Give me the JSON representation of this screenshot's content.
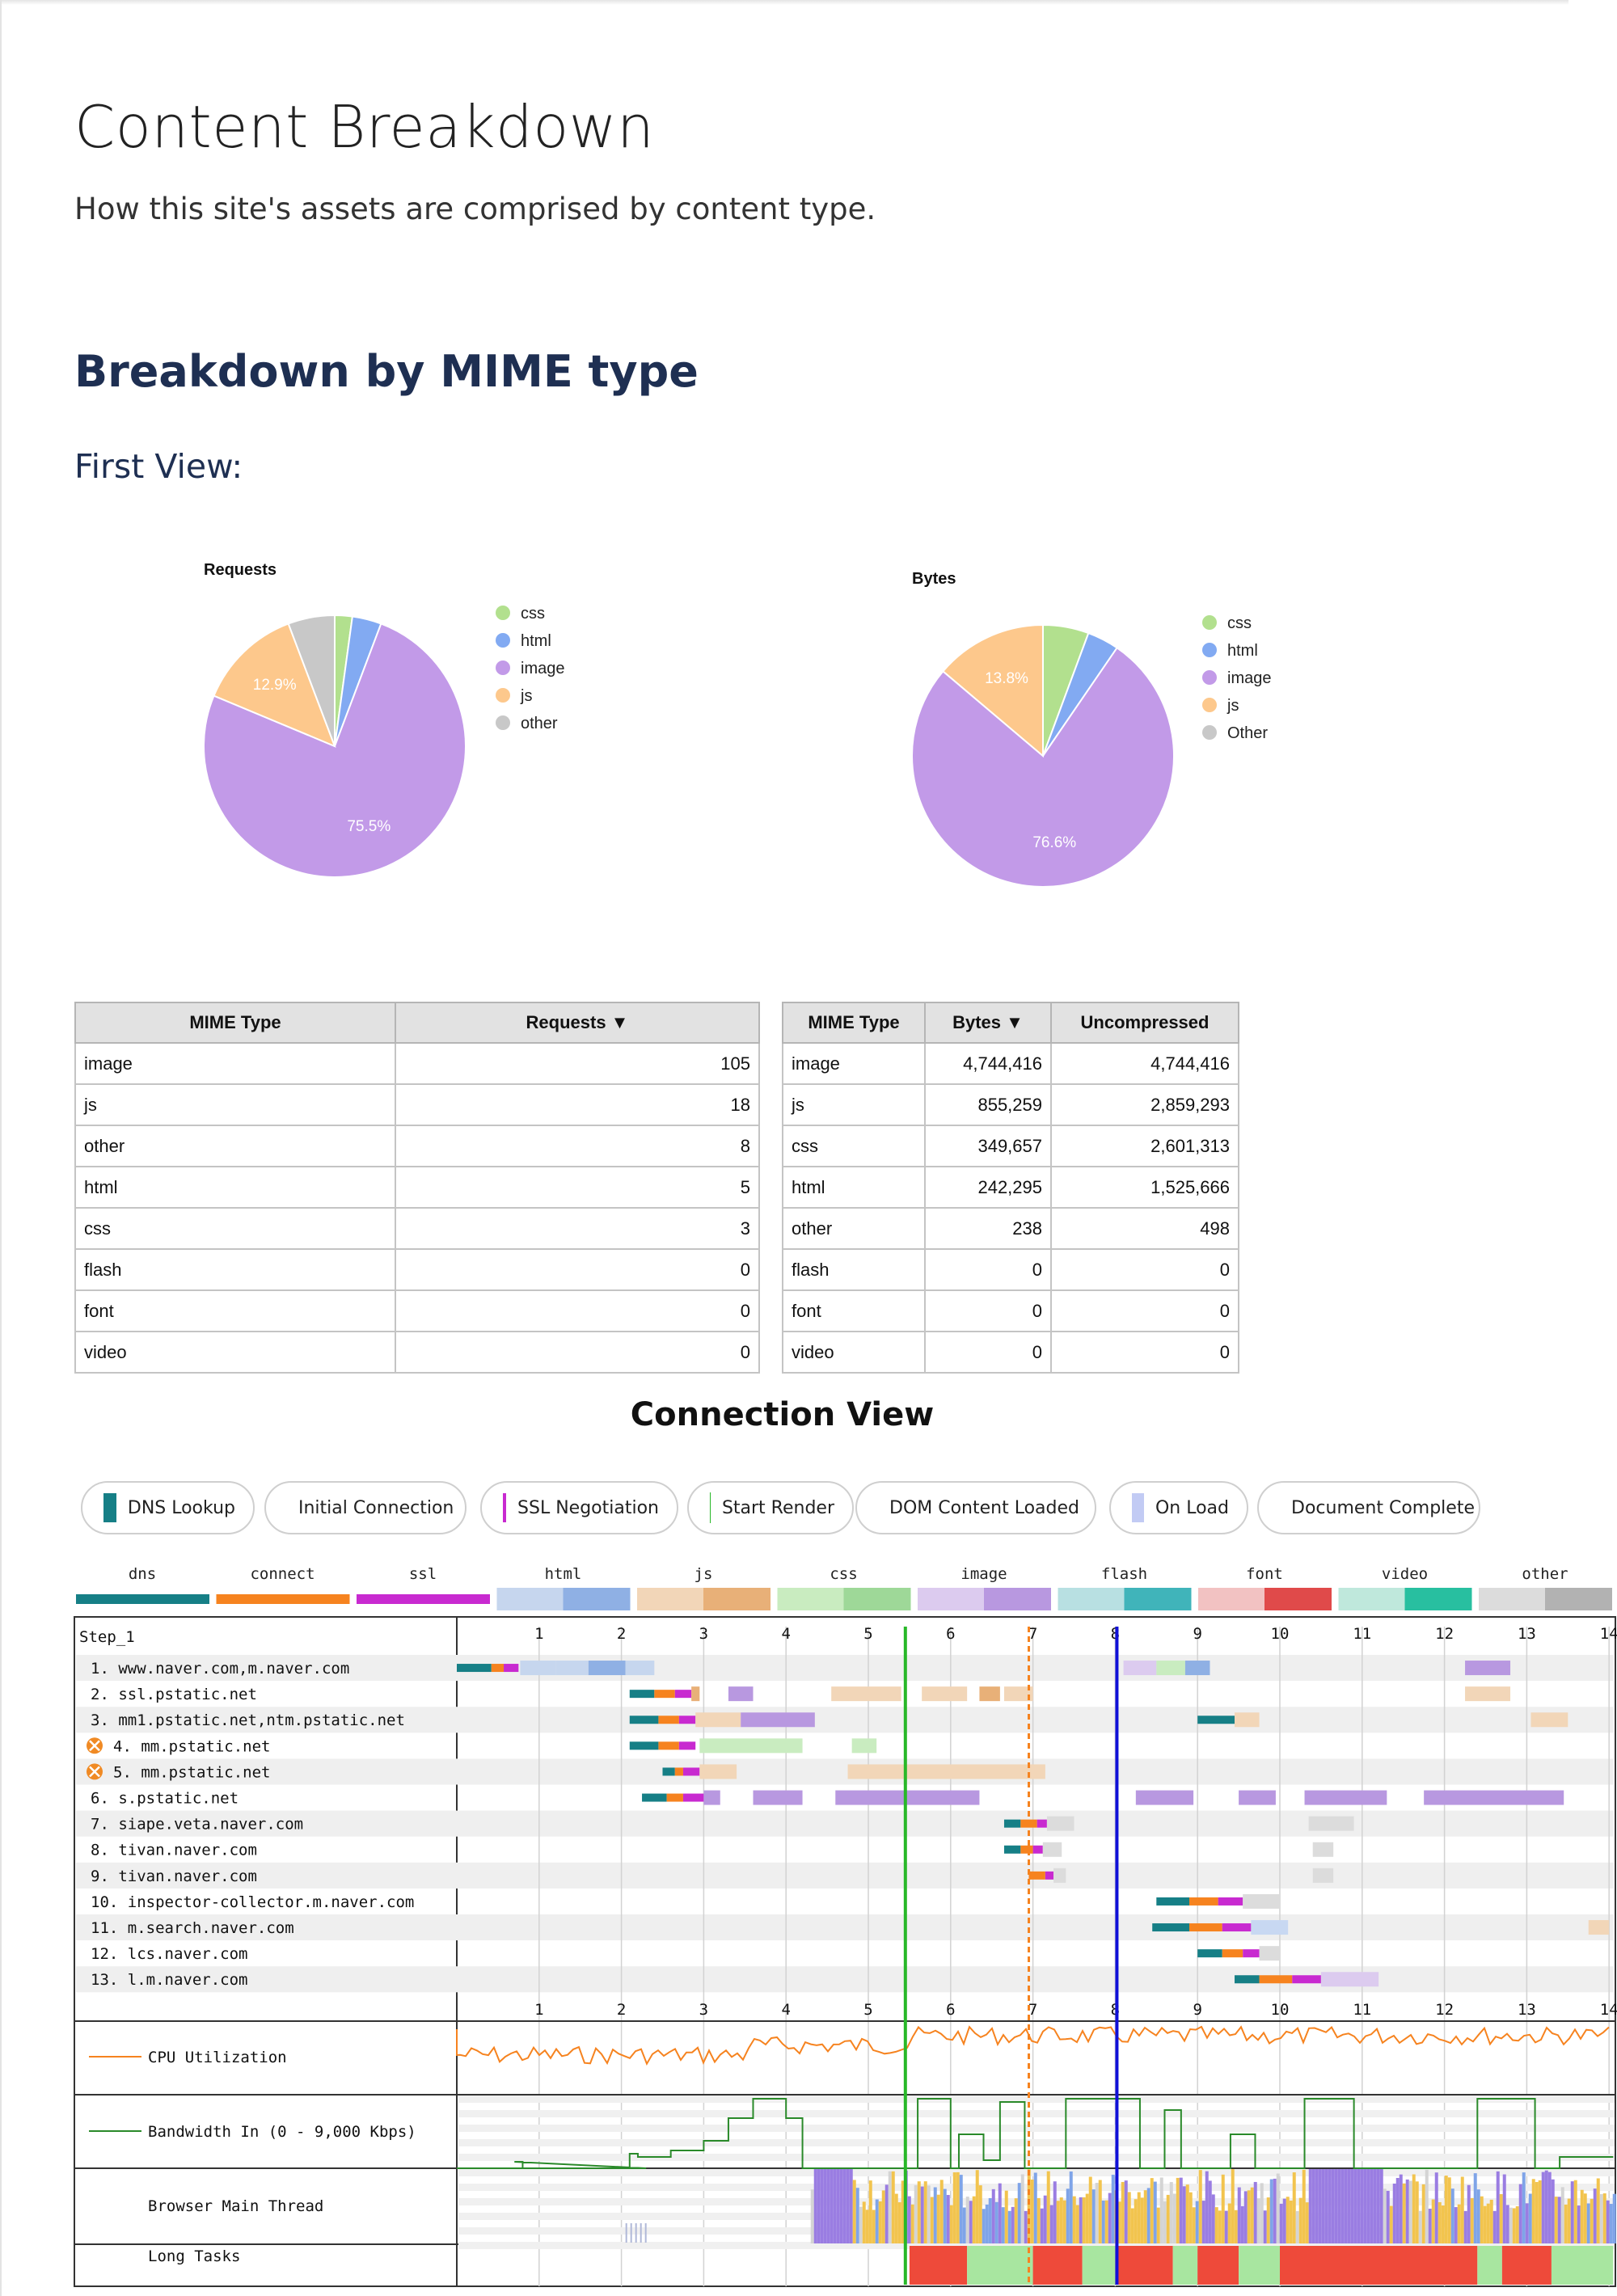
{
  "page": {
    "title": "Content Breakdown",
    "subtitle": "How this site's assets are comprised by content type.",
    "section_title": "Breakdown by MIME type",
    "view_title": "First View:"
  },
  "charts": {
    "requests": {
      "title": "Requests",
      "legend": [
        "css",
        "html",
        "image",
        "js",
        "other"
      ],
      "labels": {
        "js": "12.9%",
        "image": "75.5%"
      }
    },
    "bytes": {
      "title": "Bytes",
      "legend": [
        "css",
        "html",
        "image",
        "js",
        "Other"
      ],
      "labels": {
        "js": "13.8%",
        "image": "76.6%"
      }
    }
  },
  "colors": {
    "css": "#b2e08e",
    "html": "#82aaf2",
    "image": "#c29ae8",
    "js": "#fdc88c",
    "other": "#c8c8c8",
    "dns": "#167f86",
    "connect": "#f6831f",
    "ssl": "#c82ad0",
    "start_render": "#28b828",
    "dom_loaded": "#d88de0",
    "on_load": "#c2cbf4",
    "doc_complete": "#1010d8",
    "title_blue": "#1e2f52"
  },
  "chart_data": [
    {
      "type": "pie",
      "title": "Requests",
      "categories": [
        "css",
        "html",
        "image",
        "js",
        "other"
      ],
      "values": [
        3,
        5,
        105,
        18,
        8
      ],
      "labels": [
        "",
        "",
        "75.5%",
        "12.9%",
        ""
      ]
    },
    {
      "type": "pie",
      "title": "Bytes",
      "categories": [
        "css",
        "html",
        "image",
        "js",
        "Other"
      ],
      "values": [
        349657,
        242295,
        4744416,
        855259,
        238
      ],
      "labels": [
        "",
        "",
        "76.6%",
        "13.8%",
        ""
      ]
    }
  ],
  "requests_table": {
    "headers": [
      "MIME Type",
      "Requests ▼"
    ],
    "rows": [
      [
        "image",
        "105"
      ],
      [
        "js",
        "18"
      ],
      [
        "other",
        "8"
      ],
      [
        "html",
        "5"
      ],
      [
        "css",
        "3"
      ],
      [
        "flash",
        "0"
      ],
      [
        "font",
        "0"
      ],
      [
        "video",
        "0"
      ]
    ]
  },
  "bytes_table": {
    "headers": [
      "MIME Type",
      "Bytes ▼",
      "Uncompressed"
    ],
    "rows": [
      [
        "image",
        "4,744,416",
        "4,744,416"
      ],
      [
        "js",
        "855,259",
        "2,859,293"
      ],
      [
        "css",
        "349,657",
        "2,601,313"
      ],
      [
        "html",
        "242,295",
        "1,525,666"
      ],
      [
        "other",
        "238",
        "498"
      ],
      [
        "flash",
        "0",
        "0"
      ],
      [
        "font",
        "0",
        "0"
      ],
      [
        "video",
        "0",
        "0"
      ]
    ]
  },
  "connection": {
    "title": "Connection View",
    "legend": [
      "DNS Lookup",
      "Initial Connection",
      "SSL Negotiation",
      "Start Render",
      "DOM Content Loaded",
      "On Load",
      "Document Complete"
    ],
    "type_legend": [
      "dns",
      "connect",
      "ssl",
      "html",
      "js",
      "css",
      "image",
      "flash",
      "font",
      "video",
      "other"
    ],
    "step": "Step_1",
    "hosts": [
      "1. www.naver.com,m.naver.com",
      "2. ssl.pstatic.net",
      "3. mm1.pstatic.net,ntm.pstatic.net",
      "4. mm.pstatic.net",
      "5. mm.pstatic.net",
      "6. s.pstatic.net",
      "7. siape.veta.naver.com",
      "8. tivan.naver.com",
      "9. tivan.naver.com",
      "10. inspector-collector.m.naver.com",
      "11. m.search.naver.com",
      "12. lcs.naver.com",
      "13. l.m.naver.com"
    ],
    "time_ticks": [
      "1",
      "2",
      "3",
      "4",
      "5",
      "6",
      "7",
      "8",
      "9",
      "10",
      "11",
      "12",
      "13",
      "14"
    ],
    "start_render_s": 5.45,
    "dom_content_loaded_s": 6.95,
    "document_complete_s": 8.02,
    "cpu_label": "CPU Utilization",
    "bandwidth_label": "Bandwidth In (0 - 9,000 Kbps)",
    "main_thread_label": "Browser Main Thread",
    "long_tasks_label": "Long Tasks"
  }
}
